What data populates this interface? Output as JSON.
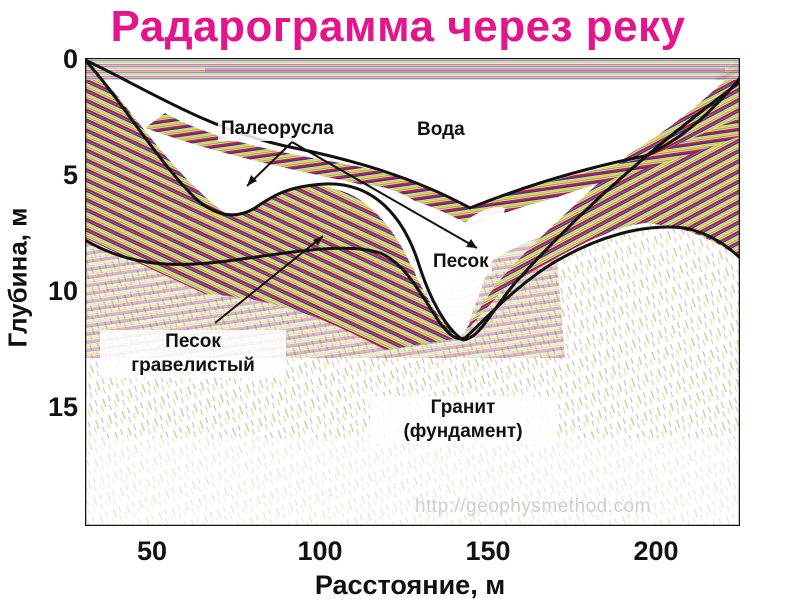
{
  "title": "Радарограмма через реку",
  "axes": {
    "y_label": "Глубина, м",
    "x_label": "Расстояние, м",
    "y_ticks": [
      "0",
      "5",
      "10",
      "15"
    ],
    "x_ticks": [
      "50",
      "100",
      "150",
      "200"
    ]
  },
  "labels": {
    "paleo": "Палеорусла",
    "water": "Вода",
    "sand": "Песок",
    "gravel_line1": "Песок",
    "gravel_line2": "гравелистый",
    "granite_line1": "Гранит",
    "granite_line2": "(фундамент)"
  },
  "watermark": "http://geophysmethod.com",
  "colors": {
    "title": "#e4148c",
    "wave_red": "#c81e3c",
    "wave_blue": "#2a3c9c",
    "wave_yellow": "#e6c82a",
    "wave_green": "#8cb450",
    "boundary": "#111111"
  }
}
